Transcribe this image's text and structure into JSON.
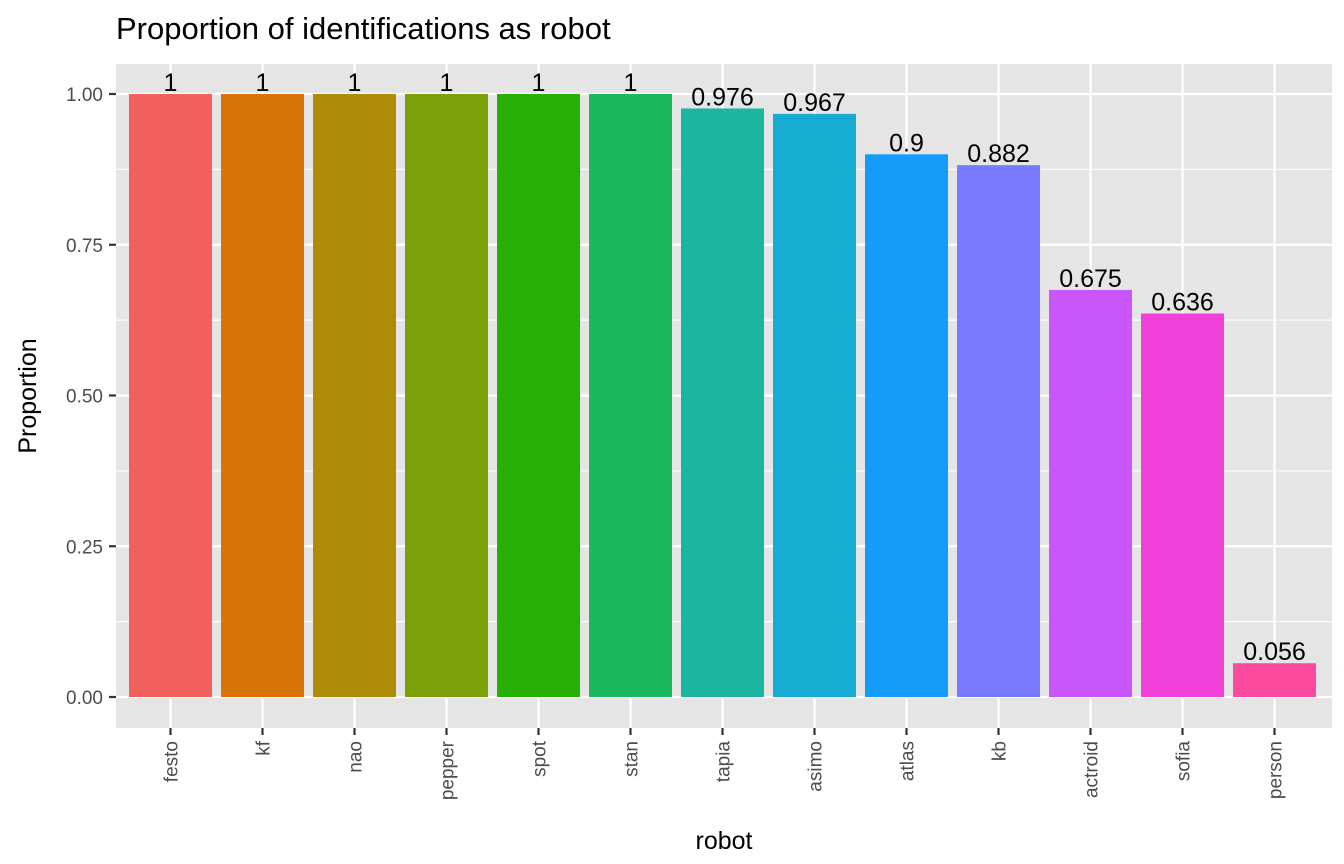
{
  "chart_data": {
    "type": "bar",
    "title": "Proportion of identifications as robot",
    "xlabel": "robot",
    "ylabel": "Proportion",
    "ylim": [
      0,
      1
    ],
    "yticks": [
      0.0,
      0.25,
      0.5,
      0.75,
      1.0
    ],
    "ytick_labels": [
      "0.00",
      "0.25",
      "0.50",
      "0.75",
      "1.00"
    ],
    "categories": [
      "festo",
      "kf",
      "nao",
      "pepper",
      "spot",
      "stan",
      "tapia",
      "asimo",
      "atlas",
      "kb",
      "actroid",
      "sofia",
      "person"
    ],
    "values": [
      1,
      1,
      1,
      1,
      1,
      1,
      0.976,
      0.967,
      0.9,
      0.882,
      0.675,
      0.636,
      0.056
    ],
    "data_labels": [
      "1",
      "1",
      "1",
      "1",
      "1",
      "1",
      "0.976",
      "0.967",
      "0.9",
      "0.882",
      "0.675",
      "0.636",
      "0.056"
    ],
    "colors": [
      "#F2605E",
      "#D97508",
      "#AE8C08",
      "#7BA008",
      "#27AF06",
      "#1CB85E",
      "#1BB5A0",
      "#17ADD2",
      "#159BFA",
      "#7A7AFE",
      "#C956F8",
      "#F042D8",
      "#FC4A9E"
    ],
    "grid": true,
    "legend": "none",
    "background": "#E5E5E5",
    "gridline_color": "#FFFFFF"
  }
}
